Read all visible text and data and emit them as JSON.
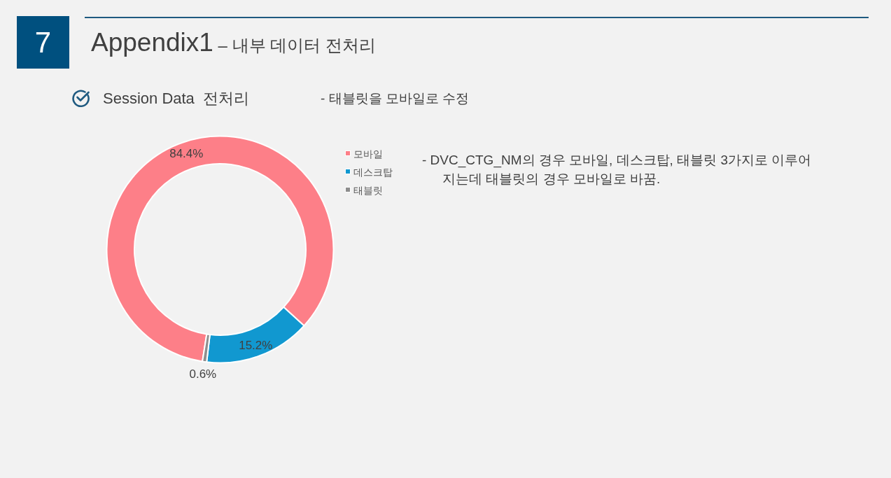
{
  "chart_data": {
    "type": "donut",
    "title": "Appendix1",
    "subtitle": "– 내부 데이터 전처리",
    "categories": [
      "모바일",
      "데스크탑",
      "태블릿"
    ],
    "values": [
      84.4,
      15.2,
      0.6
    ],
    "colors": [
      "#fd7f88",
      "#1198d0",
      "#8e8e8e"
    ],
    "value_labels": [
      "84.4%",
      "15.2%",
      "0.6%"
    ],
    "legend": "top right",
    "annotations": [
      "7",
      "Session Data  전처리",
      "- 태블릿을 모바일로 수정",
      "- DVC_CTG_NM의 경우 모바일, 데스크탑, 태블릿 3가지로 이루어지는데 태블릿의 경우 모바일로 바꿈."
    ]
  }
}
